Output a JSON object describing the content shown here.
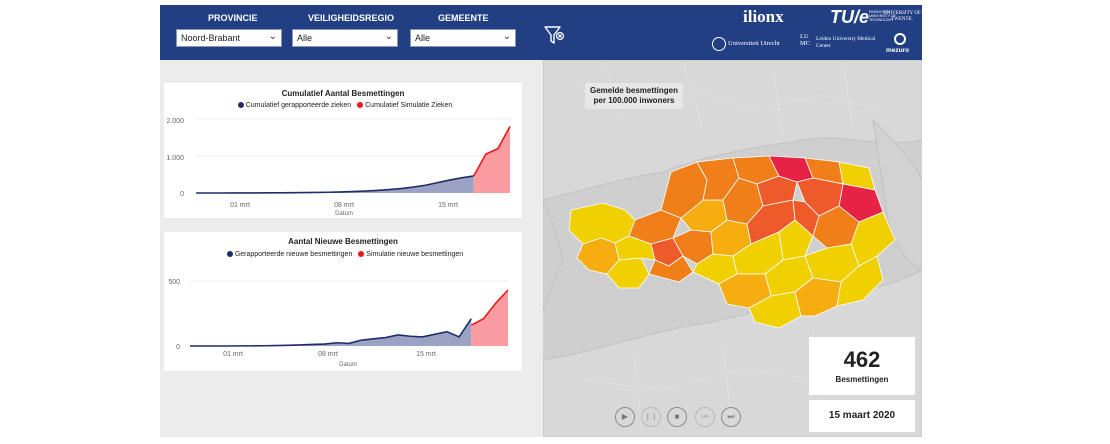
{
  "filters": {
    "provincie": {
      "label": "PROVINCIE",
      "value": "Noord-Brabant"
    },
    "veiligheidsregio": {
      "label": "VEILIGHEIDSREGIO",
      "value": "Alle"
    },
    "gemeente": {
      "label": "GEMEENTE",
      "value": "Alle"
    }
  },
  "logos": {
    "ilionx": "ilionx",
    "tue": "TU/e",
    "tue_sub": "EINDHOVEN UNIVERSITY OF TECHNOLOGY",
    "twente": "UNIVERSITY OF TWENTE.",
    "utrecht": "Universiteit Utrecht",
    "lumc_mark": "LUMC",
    "lumc": "Leiden University Medical Center",
    "mezuro": "mezuro"
  },
  "cumulative_chart": {
    "title": "Cumulatief Aantal Besmettingen",
    "legend": [
      "Cumulatief gerapporteerde zieken",
      "Cumulatief Simulatie Zieken"
    ],
    "xlabel": "Datum",
    "yticks": [
      "2.000",
      "1.000",
      "0"
    ],
    "xticks": [
      "01 mrt",
      "08 mrt",
      "15 mrt"
    ]
  },
  "new_chart": {
    "title": "Aantal Nieuwe Besmettingen",
    "legend": [
      "Gerapporteerde nieuwe besmettingen",
      "Simulatie nieuwe besmettingen"
    ],
    "xlabel": "Datum",
    "yticks": [
      "500",
      "0"
    ],
    "xticks": [
      "01 mrt",
      "08 mrt",
      "15 mrt"
    ]
  },
  "chart_data": [
    {
      "type": "area",
      "title": "Cumulatief Aantal Besmettingen",
      "xlabel": "Datum",
      "ylabel": "",
      "ylim": [
        0,
        2000
      ],
      "x": [
        "2020-02-24",
        "2020-02-25",
        "2020-02-26",
        "2020-02-27",
        "2020-02-28",
        "2020-02-29",
        "2020-03-01",
        "2020-03-02",
        "2020-03-03",
        "2020-03-04",
        "2020-03-05",
        "2020-03-06",
        "2020-03-07",
        "2020-03-08",
        "2020-03-09",
        "2020-03-10",
        "2020-03-11",
        "2020-03-12",
        "2020-03-13",
        "2020-03-14",
        "2020-03-15",
        "2020-03-16",
        "2020-03-17",
        "2020-03-18",
        "2020-03-19",
        "2020-03-20",
        "2020-03-21"
      ],
      "series": [
        {
          "name": "Cumulatief gerapporteerde zieken",
          "color": "#1f2d6b",
          "fill": "#9aa3c3",
          "values": [
            0,
            0,
            0,
            1,
            2,
            3,
            4,
            6,
            8,
            11,
            15,
            20,
            28,
            38,
            52,
            70,
            92,
            120,
            160,
            210,
            280,
            350,
            410,
            462,
            null,
            null,
            null
          ]
        },
        {
          "name": "Cumulatief Simulatie Zieken",
          "color": "#f01818",
          "fill": "#fa9ca0",
          "values": [
            null,
            null,
            null,
            null,
            null,
            null,
            null,
            null,
            null,
            null,
            null,
            null,
            null,
            null,
            null,
            null,
            null,
            null,
            null,
            null,
            null,
            null,
            null,
            462,
            1050,
            1200,
            1800
          ]
        }
      ]
    },
    {
      "type": "area",
      "title": "Aantal Nieuwe Besmettingen",
      "xlabel": "Datum",
      "ylabel": "",
      "ylim": [
        0,
        500
      ],
      "x": [
        "2020-02-24",
        "2020-02-25",
        "2020-02-26",
        "2020-02-27",
        "2020-02-28",
        "2020-02-29",
        "2020-03-01",
        "2020-03-02",
        "2020-03-03",
        "2020-03-04",
        "2020-03-05",
        "2020-03-06",
        "2020-03-07",
        "2020-03-08",
        "2020-03-09",
        "2020-03-10",
        "2020-03-11",
        "2020-03-12",
        "2020-03-13",
        "2020-03-14",
        "2020-03-15",
        "2020-03-16",
        "2020-03-17",
        "2020-03-18",
        "2020-03-19",
        "2020-03-20",
        "2020-03-21"
      ],
      "series": [
        {
          "name": "Gerapporteerde nieuwe besmettingen",
          "color": "#1f2d6b",
          "fill": "#9aa3c3",
          "values": [
            0,
            0,
            0,
            0,
            1,
            1,
            2,
            3,
            5,
            8,
            12,
            15,
            25,
            20,
            45,
            55,
            65,
            85,
            75,
            70,
            90,
            110,
            70,
            210,
            null,
            null,
            null
          ]
        },
        {
          "name": "Simulatie nieuwe besmettingen",
          "color": "#f01818",
          "fill": "#fa9ca0",
          "values": [
            null,
            null,
            null,
            null,
            null,
            null,
            null,
            null,
            null,
            null,
            null,
            null,
            null,
            null,
            null,
            null,
            null,
            null,
            null,
            null,
            null,
            null,
            null,
            160,
            210,
            330,
            430
          ]
        }
      ]
    }
  ],
  "map": {
    "label": "Gemelde besmettingen per 100.000 inwoners",
    "colors": [
      "#f0d000",
      "#f5ad0f",
      "#f07e19",
      "#ee5a2a",
      "#e62245"
    ]
  },
  "kpi": {
    "value": "462",
    "label": "Besmettingen"
  },
  "date": "15 maart 2020",
  "playback": {
    "play": "▶",
    "pause": "❙❙",
    "stop": "■",
    "previous": "⏮",
    "next": "⏭"
  }
}
